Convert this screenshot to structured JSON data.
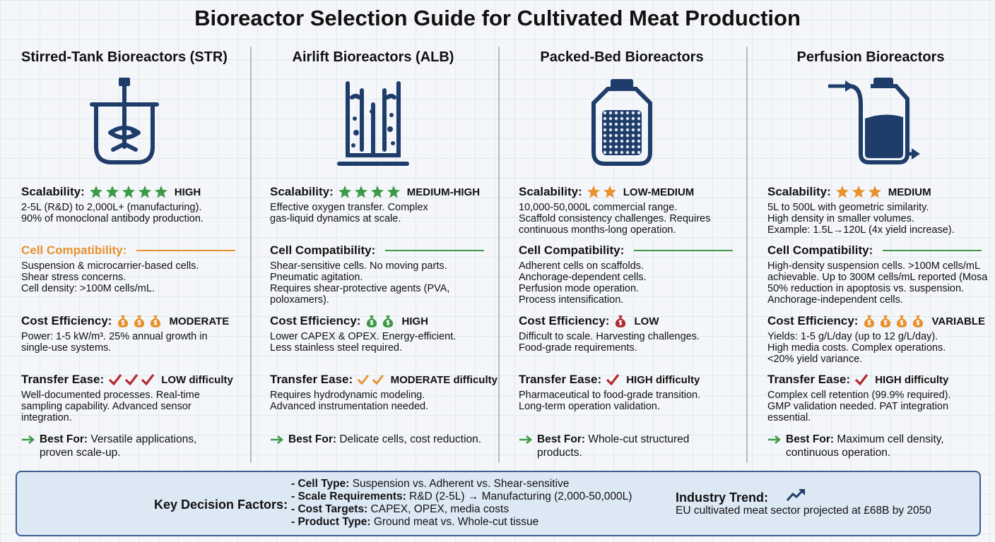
{
  "title": "Bioreactor Selection Guide for Cultivated Meat Production",
  "columns": [
    {
      "heading": "Stirred-Tank Bioreactors (STR)",
      "scalability": {
        "label": "Scalability:",
        "stars": 5,
        "star_color": "#3d9a48",
        "rating": "HIGH",
        "lines": [
          "2-5L (R&D) to 2,000L+ (manufacturing).",
          "90% of monoclonal antibody production."
        ]
      },
      "compatibility": {
        "label": "Cell Compatibility:",
        "label_color": "#e8912d",
        "line_color": "#e8912d",
        "lines": [
          "Suspension & microcarrier-based cells.",
          "Shear stress concerns.",
          "Cell density: >100M cells/mL."
        ]
      },
      "cost": {
        "label": "Cost Efficiency:",
        "icons": 3,
        "icon_color": "#e8912d",
        "rating": "MODERATE",
        "lines": [
          "Power: 1-5 kW/m³. 25% annual growth in",
          "single-use systems."
        ]
      },
      "transfer": {
        "label": "Transfer Ease:",
        "checks": 3,
        "check_color": "#b22b30",
        "rating": "LOW difficulty",
        "lines": [
          "Well-documented processes. Real-time",
          "sampling capability. Advanced sensor",
          "integration."
        ]
      },
      "best": {
        "label": "Best For:",
        "lines": [
          "Versatile applications,",
          "proven scale-up."
        ]
      }
    },
    {
      "heading": "Airlift Bioreactors (ALB)",
      "scalability": {
        "label": "Scalability:",
        "stars": 4,
        "star_color": "#3d9a48",
        "rating": "MEDIUM-HIGH",
        "lines": [
          "Effective oxygen transfer. Complex",
          "gas-liquid dynamics at scale."
        ]
      },
      "compatibility": {
        "label": "Cell Compatibility:",
        "label_color": "#111111",
        "line_color": "#3d9a48",
        "lines": [
          "Shear-sensitive cells. No moving parts.",
          "Pneumatic agitation.",
          "Requires shear-protective agents (PVA,",
          "poloxamers)."
        ]
      },
      "cost": {
        "label": "Cost Efficiency:",
        "icons": 2,
        "icon_color": "#3d9a48",
        "rating": "HIGH",
        "lines": [
          "Lower CAPEX & OPEX. Energy-efficient.",
          "Less stainless steel required."
        ]
      },
      "transfer": {
        "label": "Transfer Ease:",
        "checks": 2,
        "check_color": "#e8912d",
        "rating": "MODERATE difficulty",
        "lines": [
          "Requires hydrodynamic modeling.",
          "Advanced instrumentation needed."
        ]
      },
      "best": {
        "label": "Best For:",
        "lines": [
          "Delicate cells, cost reduction."
        ]
      }
    },
    {
      "heading": "Packed-Bed Bioreactors",
      "scalability": {
        "label": "Scalability:",
        "stars": 2,
        "star_color": "#e8912d",
        "rating": "LOW-MEDIUM",
        "lines": [
          "10,000-50,000L commercial range.",
          "Scaffold consistency challenges. Requires",
          "continuous months-long operation."
        ]
      },
      "compatibility": {
        "label": "Cell Compatibility:",
        "label_color": "#111111",
        "line_color": "#3d9a48",
        "lines": [
          "Adherent cells on scaffolds.",
          "Anchorage-dependent cells.",
          "Perfusion mode operation.",
          "Process intensification."
        ]
      },
      "cost": {
        "label": "Cost Efficiency:",
        "icons": 1,
        "icon_color": "#b22b30",
        "rating": "LOW",
        "lines": [
          "Difficult to scale. Harvesting challenges.",
          "Food-grade requirements."
        ]
      },
      "transfer": {
        "label": "Transfer Ease:",
        "checks": 1,
        "check_color": "#b22b30",
        "rating": "HIGH difficulty",
        "lines": [
          "Pharmaceutical to food-grade transition.",
          "Long-term operation validation."
        ]
      },
      "best": {
        "label": "Best For:",
        "lines": [
          "Whole-cut structured",
          "products."
        ]
      }
    },
    {
      "heading": "Perfusion Bioreactors",
      "scalability": {
        "label": "Scalability:",
        "stars": 3,
        "star_color": "#e8912d",
        "rating": "MEDIUM",
        "lines": [
          "5L to 500L with geometric similarity.",
          "High density in smaller volumes.",
          "Example: 1.5L→120L (4x yield increase)."
        ]
      },
      "compatibility": {
        "label": "Cell Compatibility:",
        "label_color": "#111111",
        "line_color": "#3d9a48",
        "lines": [
          "High-density suspension cells. >100M cells/mL",
          "achievable. Up to 300M cells/mL reported (Mosa",
          "50% reduction in apoptosis vs. suspension.",
          "Anchorage-independent cells."
        ]
      },
      "cost": {
        "label": "Cost Efficiency:",
        "icons": 4,
        "icon_color": "#e8912d",
        "rating": "VARIABLE",
        "lines": [
          "Yields: 1-5 g/L/day (up to 12 g/L/day).",
          "High media costs. Complex operations.",
          "<20% yield variance."
        ]
      },
      "transfer": {
        "label": "Transfer Ease:",
        "checks": 1,
        "check_color": "#b22b30",
        "rating": "HIGH difficulty",
        "lines": [
          "Complex cell retention (99.9% required).",
          "GMP validation needed. PAT integration",
          "essential."
        ]
      },
      "best": {
        "label": "Best For:",
        "lines": [
          "Maximum cell density,",
          "continuous operation."
        ]
      }
    }
  ],
  "footer": {
    "label": "Key Decision Factors:",
    "factors": [
      {
        "term": "- Cell Type:",
        "text": "Suspension vs. Adherent vs. Shear-sensitive"
      },
      {
        "term": "- Scale Requirements:",
        "text": "R&D (2-5L) → Manufacturing (2,000-50,000L)"
      },
      {
        "term": "- Cost Targets:",
        "text": "CAPEX, OPEX, media costs"
      },
      {
        "term": "- Product Type:",
        "text": "Ground meat vs. Whole-cut tissue"
      }
    ],
    "trend": {
      "label": "Industry Trend:",
      "text": "EU cultivated meat sector projected at £68B by 2050"
    }
  }
}
